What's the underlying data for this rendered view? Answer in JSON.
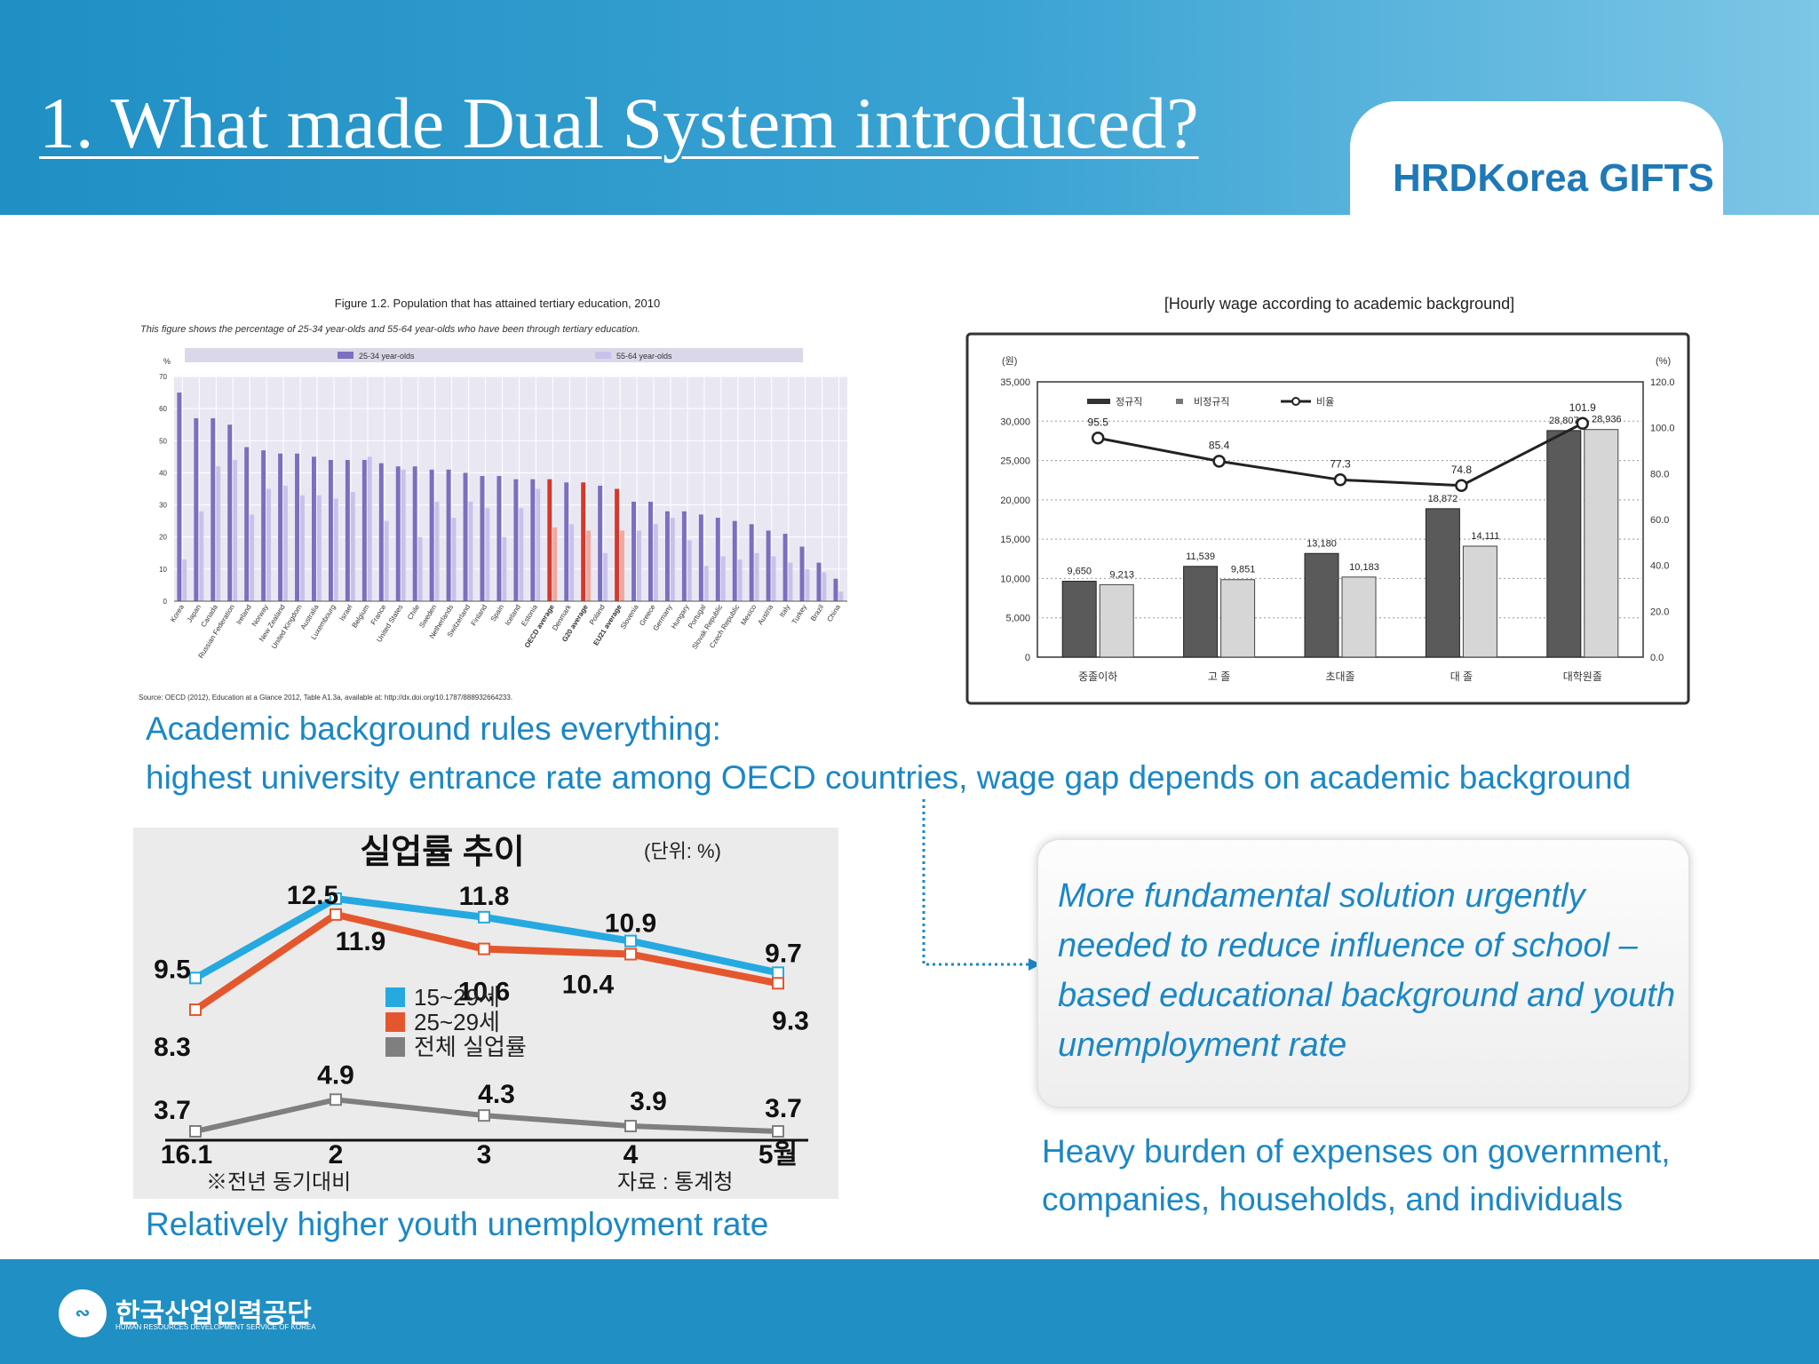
{
  "slide": {
    "title": "1. What made Dual System introduced?",
    "logo": "HRDKorea GIFTS",
    "footer_org": "한국산업인력공단",
    "footer_org_en": "HUMAN RESOURCES DEVELOPMENT SERVICE OF KOREA",
    "caption1_line1": "Academic background rules everything:",
    "caption1_line2": "highest  university entrance rate among OECD countries, wage gap depends on academic background",
    "caption2": "Relatively higher youth unemployment rate",
    "callout_lines": [
      "More fundamental solution urgently",
      "needed  to  reduce influence of  school –",
      "based educational background and youth",
      "unemployment  rate"
    ],
    "heavy_line1": "Heavy burden of expenses on government,",
    "heavy_line2": "companies, households, and individuals",
    "colors": {
      "blue": "#1a87c6",
      "header": "#1f8fc4",
      "accent_red": "#e4572e",
      "accent_cyan": "#25a9e0"
    }
  },
  "chart_data": [
    {
      "type": "bar",
      "title": "Figure 1.2.  Population that has attained tertiary education, 2010",
      "subtitle": "This figure shows the percentage of 25-34 year-olds and 55-64 year-olds who have been through tertiary education.",
      "ylabel": "%",
      "ylim": [
        0,
        70
      ],
      "yticks": [
        0,
        10,
        20,
        30,
        40,
        50,
        60,
        70
      ],
      "source": "Source:  OECD (2012), Education at a Glance 2012, Table A1.3a, available at: http://dx.doi.org/10.1787/888932664233.",
      "categories": [
        "Korea",
        "Japan",
        "Canada",
        "Russian Federation",
        "Ireland",
        "Norway",
        "New Zealand",
        "United Kingdom",
        "Australia",
        "Luxembourg",
        "Israel",
        "Belgium",
        "France",
        "United States",
        "Chile",
        "Sweden",
        "Netherlands",
        "Switzerland",
        "Finland",
        "Spain",
        "Iceland",
        "Estonia",
        "OECD average",
        "Denmark",
        "G20 average",
        "Poland",
        "EU21 average",
        "Slovenia",
        "Greece",
        "Germany",
        "Hungary",
        "Portugal",
        "Slovak Republic",
        "Czech Republic",
        "Mexico",
        "Austria",
        "Italy",
        "Turkey",
        "Brazil",
        "China"
      ],
      "highlight": [
        "OECD average",
        "G20 average",
        "EU21 average"
      ],
      "series": [
        {
          "name": "25-34 year-olds",
          "color": "#7a6fc0",
          "values": [
            65,
            57,
            57,
            55,
            48,
            47,
            46,
            46,
            45,
            44,
            44,
            44,
            43,
            42,
            42,
            41,
            41,
            40,
            39,
            39,
            38,
            38,
            38,
            37,
            37,
            36,
            35,
            31,
            31,
            28,
            28,
            27,
            26,
            25,
            24,
            22,
            21,
            17,
            12,
            7
          ]
        },
        {
          "name": "55-64 year-olds",
          "color": "#c8c2ea",
          "values": [
            13,
            28,
            42,
            44,
            27,
            35,
            36,
            33,
            33,
            32,
            34,
            45,
            25,
            41,
            20,
            31,
            26,
            31,
            29,
            20,
            29,
            35,
            23,
            24,
            22,
            15,
            22,
            22,
            24,
            26,
            19,
            11,
            14,
            13,
            15,
            14,
            12,
            10,
            9,
            3
          ]
        }
      ]
    },
    {
      "type": "bar",
      "title": "[Hourly wage according to academic background]",
      "ylabel": "(원)",
      "y2label": "(%)",
      "ylim": [
        0,
        35000
      ],
      "yticks": [
        "0",
        "5,000",
        "10,000",
        "15,000",
        "20,000",
        "25,000",
        "30,000",
        "35,000"
      ],
      "y2lim": [
        0,
        120
      ],
      "y2ticks": [
        "0.0",
        "20.0",
        "40.0",
        "60.0",
        "80.0",
        "100.0",
        "120.0"
      ],
      "categories": [
        "중졸이하",
        "고 졸",
        "초대졸",
        "대 졸",
        "대학원졸"
      ],
      "series": [
        {
          "name": "정규직",
          "values": [
            9650,
            11539,
            13180,
            18872,
            28807
          ],
          "labels": [
            "9,650",
            "11,539",
            "13,180",
            "18,872",
            "28,807"
          ]
        },
        {
          "name": "비정규직",
          "values": [
            9213,
            9851,
            10183,
            14111,
            28936
          ],
          "labels": [
            "9,213",
            "9,851",
            "10,183",
            "14,111",
            "28,936"
          ]
        },
        {
          "name": "비율",
          "axis": "right",
          "values": [
            95.5,
            85.4,
            77.3,
            74.8,
            101.9
          ],
          "labels": [
            "95.5",
            "85.4",
            "77.3",
            "74.8",
            "101.9"
          ]
        }
      ]
    },
    {
      "type": "line",
      "title": "실업률 추이",
      "unit": "(단위: %)",
      "categories": [
        "16.1",
        "2",
        "3",
        "4",
        "5월"
      ],
      "note": "※전년 동기대비",
      "source": "자료 : 통계청",
      "series": [
        {
          "name": "15~29세",
          "color": "#25a9e0",
          "values": [
            9.5,
            12.5,
            11.8,
            10.9,
            9.7
          ],
          "labels": [
            "9.5",
            "12.5",
            "11.8",
            "10.9",
            "9.7"
          ]
        },
        {
          "name": "25~29세",
          "color": "#e4572e",
          "values": [
            8.3,
            11.9,
            10.6,
            10.4,
            9.3
          ],
          "labels": [
            "8.3",
            "11.9",
            "10.6",
            "10.4",
            "9.3"
          ]
        },
        {
          "name": "전체 실업률",
          "color": "#7f7f7f",
          "values": [
            3.7,
            4.9,
            4.3,
            3.9,
            3.7
          ],
          "labels": [
            "3.7",
            "4.9",
            "4.3",
            "3.9",
            "3.7"
          ]
        }
      ]
    }
  ]
}
